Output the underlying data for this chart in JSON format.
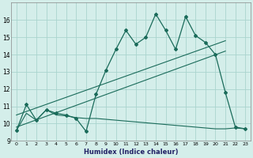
{
  "xlabel": "Humidex (Indice chaleur)",
  "bg_color": "#d4eeea",
  "grid_color": "#aad4ce",
  "line_color": "#1a6b5a",
  "xlim": [
    -0.5,
    23.5
  ],
  "ylim": [
    9,
    17
  ],
  "xticks": [
    0,
    1,
    2,
    3,
    4,
    5,
    6,
    7,
    8,
    9,
    10,
    11,
    12,
    13,
    14,
    15,
    16,
    17,
    18,
    19,
    20,
    21,
    22,
    23
  ],
  "yticks": [
    9,
    10,
    11,
    12,
    13,
    14,
    15,
    16
  ],
  "main_x": [
    0,
    1,
    2,
    3,
    4,
    5,
    6,
    7,
    8,
    9,
    10,
    11,
    12,
    13,
    14,
    15,
    16,
    17,
    18,
    19,
    20,
    21,
    22,
    23
  ],
  "main_y": [
    9.6,
    11.1,
    10.2,
    10.8,
    10.6,
    10.5,
    10.3,
    9.55,
    11.7,
    13.1,
    14.3,
    15.4,
    14.6,
    15.0,
    16.35,
    15.4,
    14.3,
    16.2,
    15.1,
    14.7,
    14.0,
    11.8,
    9.8,
    9.7
  ],
  "trend1_x": [
    0,
    21
  ],
  "trend1_y": [
    10.5,
    14.8
  ],
  "trend2_x": [
    0,
    21
  ],
  "trend2_y": [
    9.8,
    14.2
  ],
  "lower_x": [
    0,
    1,
    2,
    3,
    4,
    5,
    6,
    7,
    8,
    9,
    10,
    11,
    12,
    13,
    14,
    15,
    16,
    17,
    18,
    19,
    20,
    21,
    22,
    23
  ],
  "lower_y": [
    9.6,
    10.6,
    10.2,
    10.8,
    10.5,
    10.45,
    10.35,
    10.3,
    10.3,
    10.25,
    10.2,
    10.15,
    10.1,
    10.05,
    10.0,
    9.95,
    9.9,
    9.85,
    9.8,
    9.75,
    9.7,
    9.7,
    9.75,
    9.7
  ]
}
